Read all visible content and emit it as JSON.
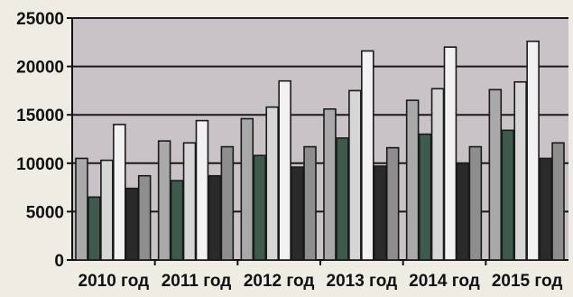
{
  "chart_data": {
    "type": "bar",
    "title": "",
    "xlabel": "",
    "ylabel": "",
    "ylim": [
      0,
      25000
    ],
    "yticks": [
      0,
      5000,
      10000,
      15000,
      20000,
      25000
    ],
    "grid": true,
    "legend": "none",
    "categories": [
      "2010 год",
      "2011 год",
      "2012 год",
      "2013 год",
      "2014 год",
      "2015 год"
    ],
    "series": [
      {
        "values": [
          10500,
          12300,
          14600,
          15600,
          16500,
          17600
        ],
        "color": "#a9a9a9"
      },
      {
        "values": [
          6500,
          8200,
          10800,
          12600,
          13000,
          13400
        ],
        "color": "#3d5a4c"
      },
      {
        "values": [
          10300,
          12100,
          15800,
          17500,
          17700,
          18400
        ],
        "color": "#d6d6d6"
      },
      {
        "values": [
          14000,
          14400,
          18500,
          21600,
          22000,
          22600
        ],
        "color": "#f2f2f2"
      },
      {
        "values": [
          7400,
          8700,
          9600,
          9700,
          10000,
          10500
        ],
        "color": "#2a2a2a"
      },
      {
        "values": [
          8700,
          11700,
          11700,
          11600,
          11700,
          12100
        ],
        "color": "#8e8e8e"
      }
    ]
  }
}
